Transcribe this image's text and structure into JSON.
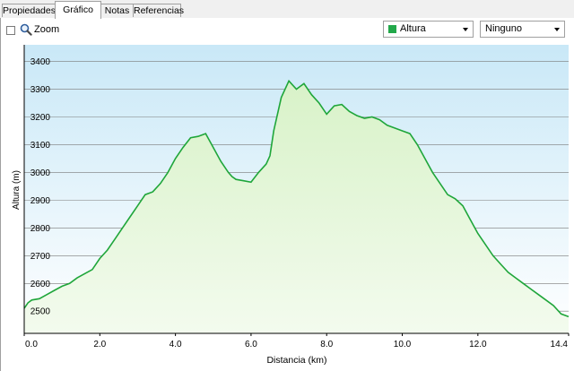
{
  "tabs": [
    {
      "label": "Propiedades",
      "active": false
    },
    {
      "label": "Gráfico",
      "active": true
    },
    {
      "label": "Notas",
      "active": false
    },
    {
      "label": "Referencias",
      "active": false
    }
  ],
  "toolbar": {
    "zoom_label": "Zoom",
    "zoom_checked": false,
    "series_select": {
      "value": "Altura",
      "color": "#22a84a"
    },
    "overlay_select": {
      "value": "Ninguno"
    }
  },
  "colors": {
    "line": "#1fa63a",
    "fill_top": "#d8f2c8",
    "fill_bottom": "#f3fbee",
    "plot_top": "#c9e8f7",
    "plot_bottom": "#ffffff",
    "grid": "#7a7a7a"
  },
  "chart_data": {
    "type": "area",
    "xlabel": "Distancia  (km)",
    "ylabel": "Altura (m)",
    "xlim": [
      0,
      14.4
    ],
    "ylim": [
      2420,
      3460
    ],
    "x_ticks": [
      "0.0",
      "2.0",
      "4.0",
      "6.0",
      "8.0",
      "10.0",
      "12.0",
      "14.4"
    ],
    "x_tick_values": [
      0,
      2,
      4,
      6,
      8,
      10,
      12,
      14.4
    ],
    "y_ticks": [
      "2500",
      "2600",
      "2700",
      "2800",
      "2900",
      "3000",
      "3100",
      "3200",
      "3300",
      "3400"
    ],
    "y_tick_values": [
      2500,
      2600,
      2700,
      2800,
      2900,
      3000,
      3100,
      3200,
      3300,
      3400
    ],
    "grid": true,
    "series": [
      {
        "x": [
          0,
          0.1,
          0.2,
          0.4,
          0.6,
          0.8,
          1.0,
          1.2,
          1.4,
          1.6,
          1.8,
          2.0,
          2.2,
          2.4,
          2.6,
          2.8,
          3.0,
          3.2,
          3.4,
          3.6,
          3.8,
          4.0,
          4.2,
          4.4,
          4.6,
          4.8,
          5.0,
          5.2,
          5.4,
          5.5,
          5.6,
          5.8,
          6.0,
          6.2,
          6.4,
          6.5,
          6.6,
          6.8,
          7.0,
          7.2,
          7.3,
          7.4,
          7.6,
          7.8,
          8.0,
          8.1,
          8.2,
          8.4,
          8.6,
          8.8,
          9.0,
          9.2,
          9.4,
          9.6,
          9.8,
          10.0,
          10.2,
          10.4,
          10.6,
          10.8,
          11.0,
          11.2,
          11.4,
          11.6,
          11.8,
          12.0,
          12.2,
          12.4,
          12.6,
          12.8,
          13.0,
          13.2,
          13.4,
          13.6,
          13.8,
          14.0,
          14.2,
          14.4
        ],
        "y": [
          2510,
          2530,
          2540,
          2545,
          2560,
          2575,
          2590,
          2600,
          2620,
          2635,
          2650,
          2690,
          2720,
          2760,
          2800,
          2840,
          2880,
          2920,
          2930,
          2960,
          3000,
          3050,
          3090,
          3125,
          3130,
          3140,
          3090,
          3040,
          3000,
          2985,
          2975,
          2970,
          2965,
          3000,
          3030,
          3060,
          3150,
          3270,
          3330,
          3300,
          3310,
          3320,
          3280,
          3250,
          3210,
          3225,
          3240,
          3245,
          3220,
          3205,
          3195,
          3200,
          3190,
          3170,
          3160,
          3150,
          3140,
          3100,
          3050,
          3000,
          2960,
          2920,
          2905,
          2880,
          2830,
          2780,
          2740,
          2700,
          2670,
          2640,
          2620,
          2600,
          2580,
          2560,
          2540,
          2520,
          2490,
          2480
        ]
      }
    ]
  }
}
